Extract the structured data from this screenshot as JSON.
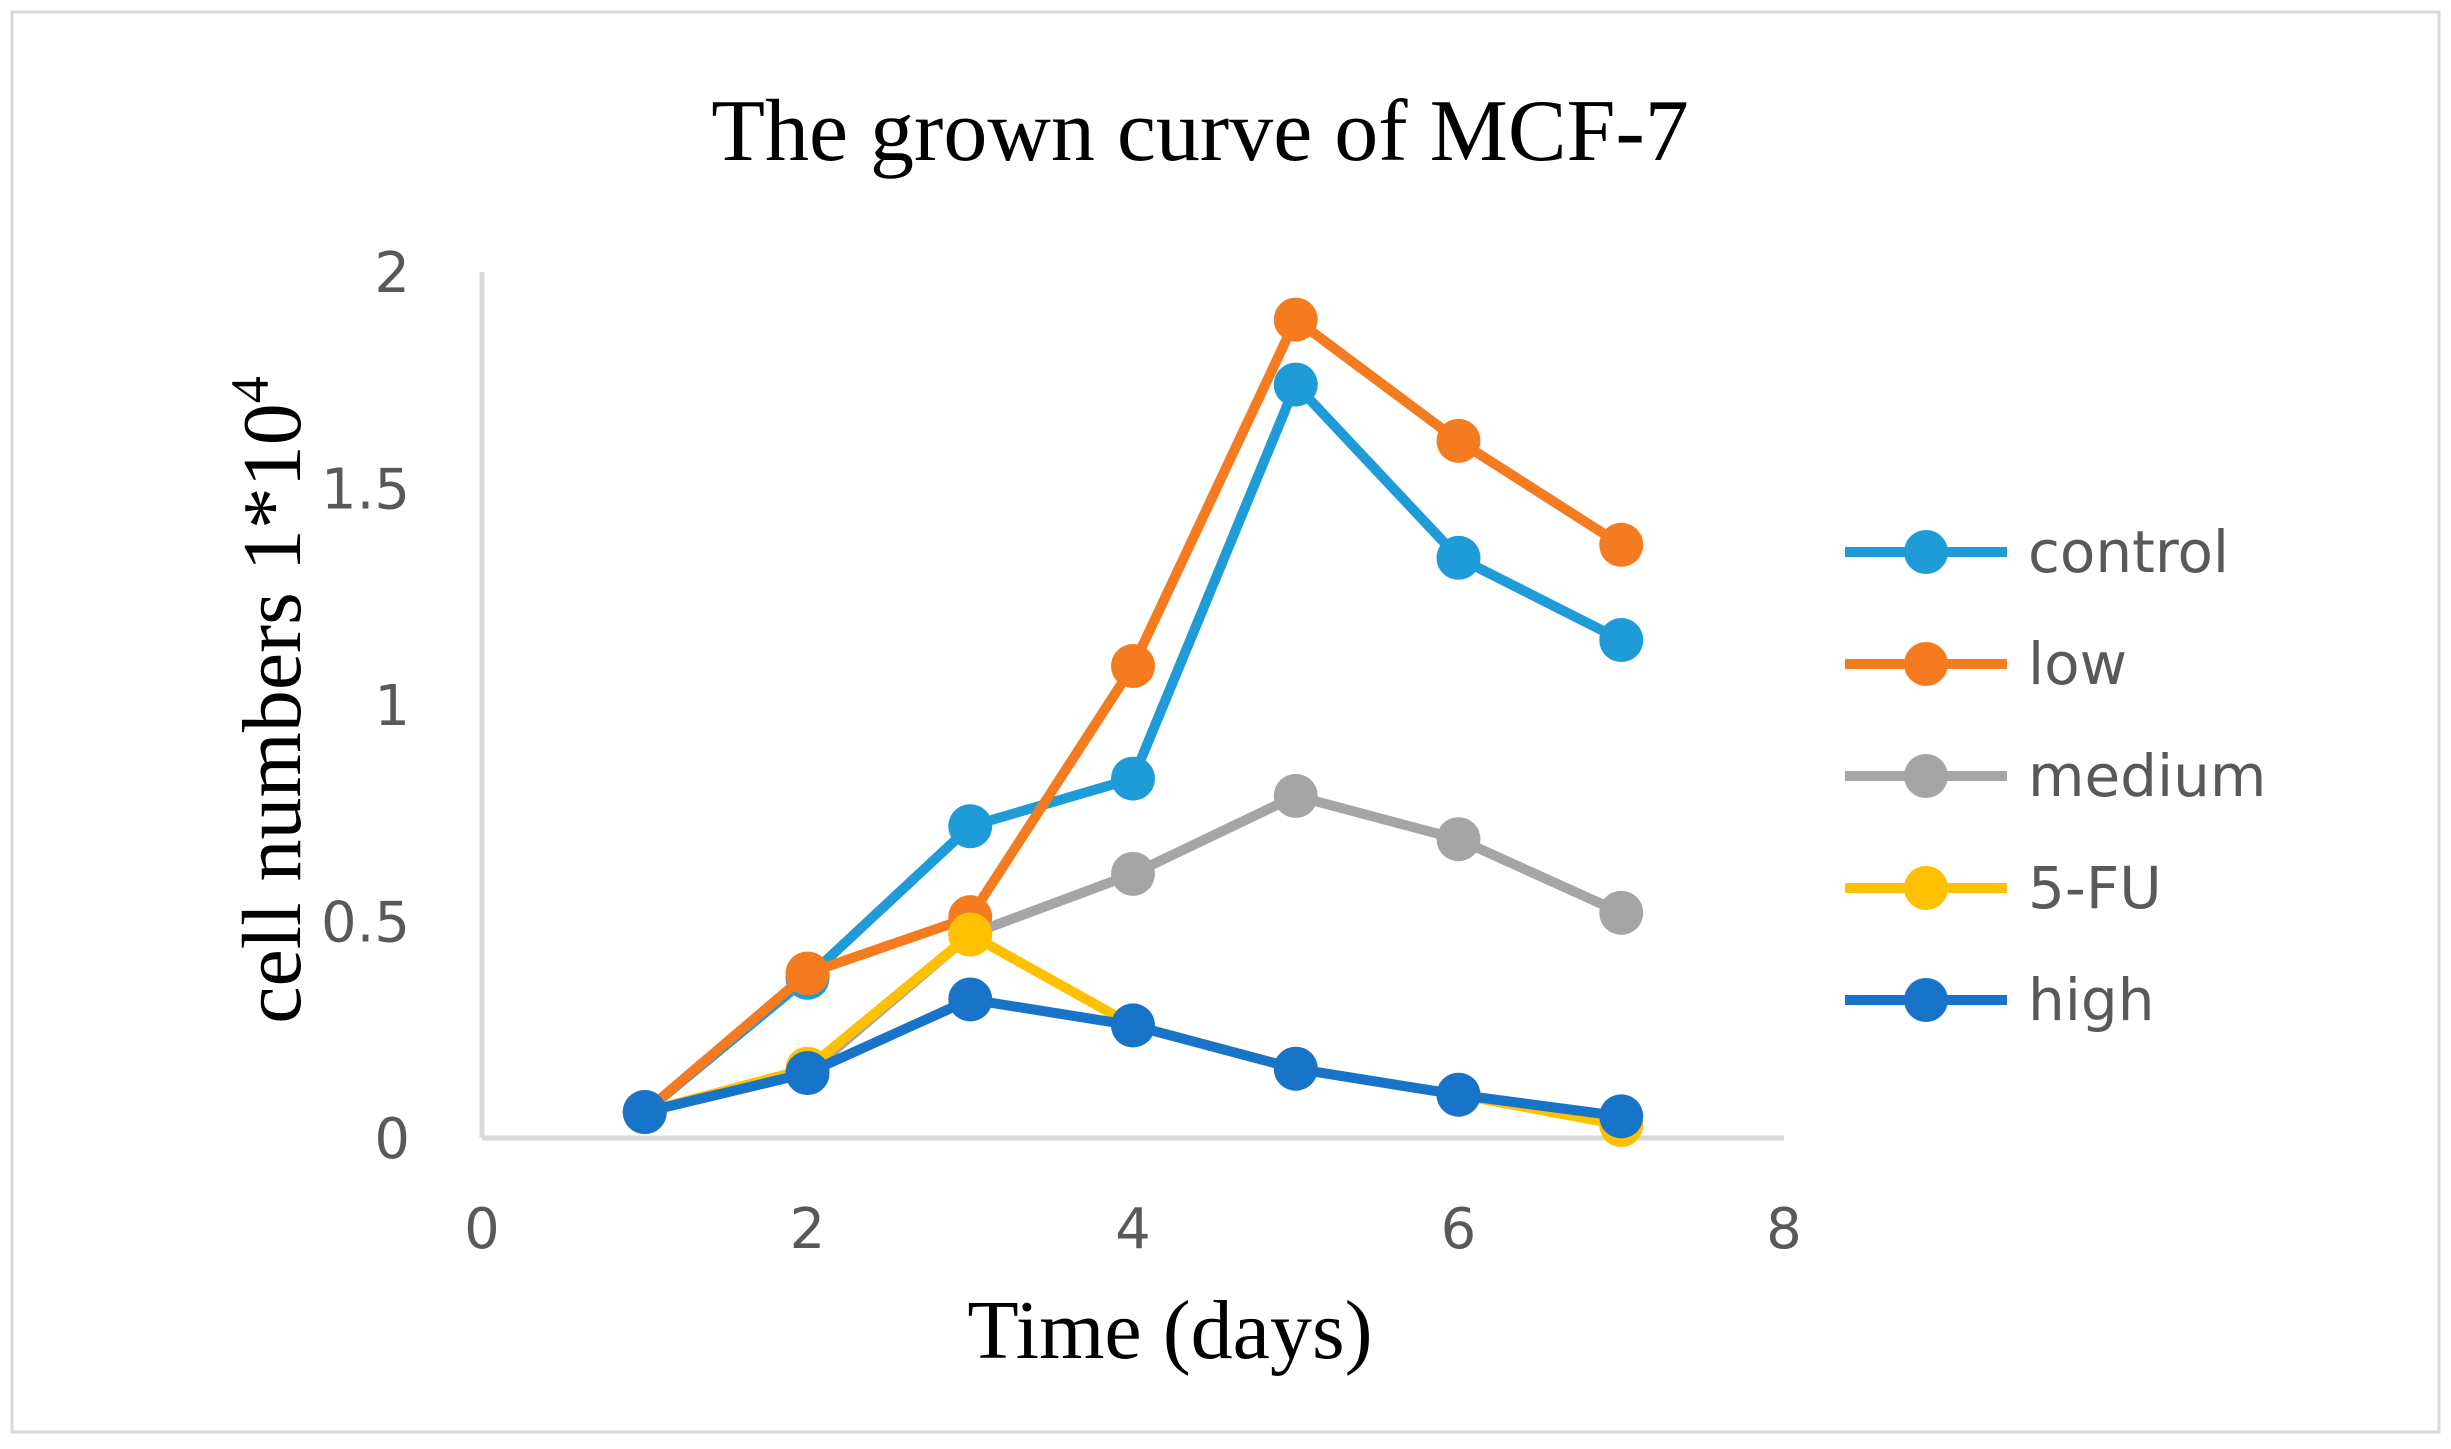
{
  "chart_data": {
    "type": "line",
    "title": "The grown curve of MCF-7",
    "xlabel": "Time (days)",
    "ylabel": "cell numbers 1*10",
    "ylabel_superscript": "4",
    "xlim": [
      0,
      8
    ],
    "ylim": [
      0,
      2
    ],
    "xticks": [
      0,
      2,
      4,
      6,
      8
    ],
    "xtick_labels": [
      "0",
      "2",
      "4",
      "6",
      "8"
    ],
    "yticks": [
      0,
      0.5,
      1,
      1.5,
      2
    ],
    "ytick_labels": [
      "0",
      "0.5",
      "1",
      "1.5",
      "2"
    ],
    "grid": false,
    "legend_position": "right",
    "series": [
      {
        "name": "control",
        "color": "#1F9BD7",
        "x": [
          1,
          2,
          3,
          4,
          5,
          6,
          7
        ],
        "y": [
          0.06,
          0.37,
          0.72,
          0.83,
          1.74,
          1.34,
          1.15
        ]
      },
      {
        "name": "low",
        "color": "#F47B20",
        "x": [
          1,
          2,
          3,
          4,
          5,
          6,
          7
        ],
        "y": [
          0.06,
          0.38,
          0.51,
          1.09,
          1.89,
          1.61,
          1.37
        ]
      },
      {
        "name": "medium",
        "color": "#A5A5A5",
        "x": [
          1,
          2,
          3,
          4,
          5,
          6,
          7
        ],
        "y": [
          0.06,
          0.15,
          0.47,
          0.61,
          0.79,
          0.69,
          0.52
        ]
      },
      {
        "name": "5-FU",
        "color": "#FFC000",
        "x": [
          1,
          2,
          3,
          4,
          5,
          6,
          7
        ],
        "y": [
          0.06,
          0.16,
          0.47,
          0.26,
          0.16,
          0.1,
          0.03
        ]
      },
      {
        "name": "high",
        "color": "#1874C8",
        "x": [
          1,
          2,
          3,
          4,
          5,
          6,
          7
        ],
        "y": [
          0.06,
          0.15,
          0.32,
          0.26,
          0.16,
          0.1,
          0.05
        ]
      }
    ]
  }
}
